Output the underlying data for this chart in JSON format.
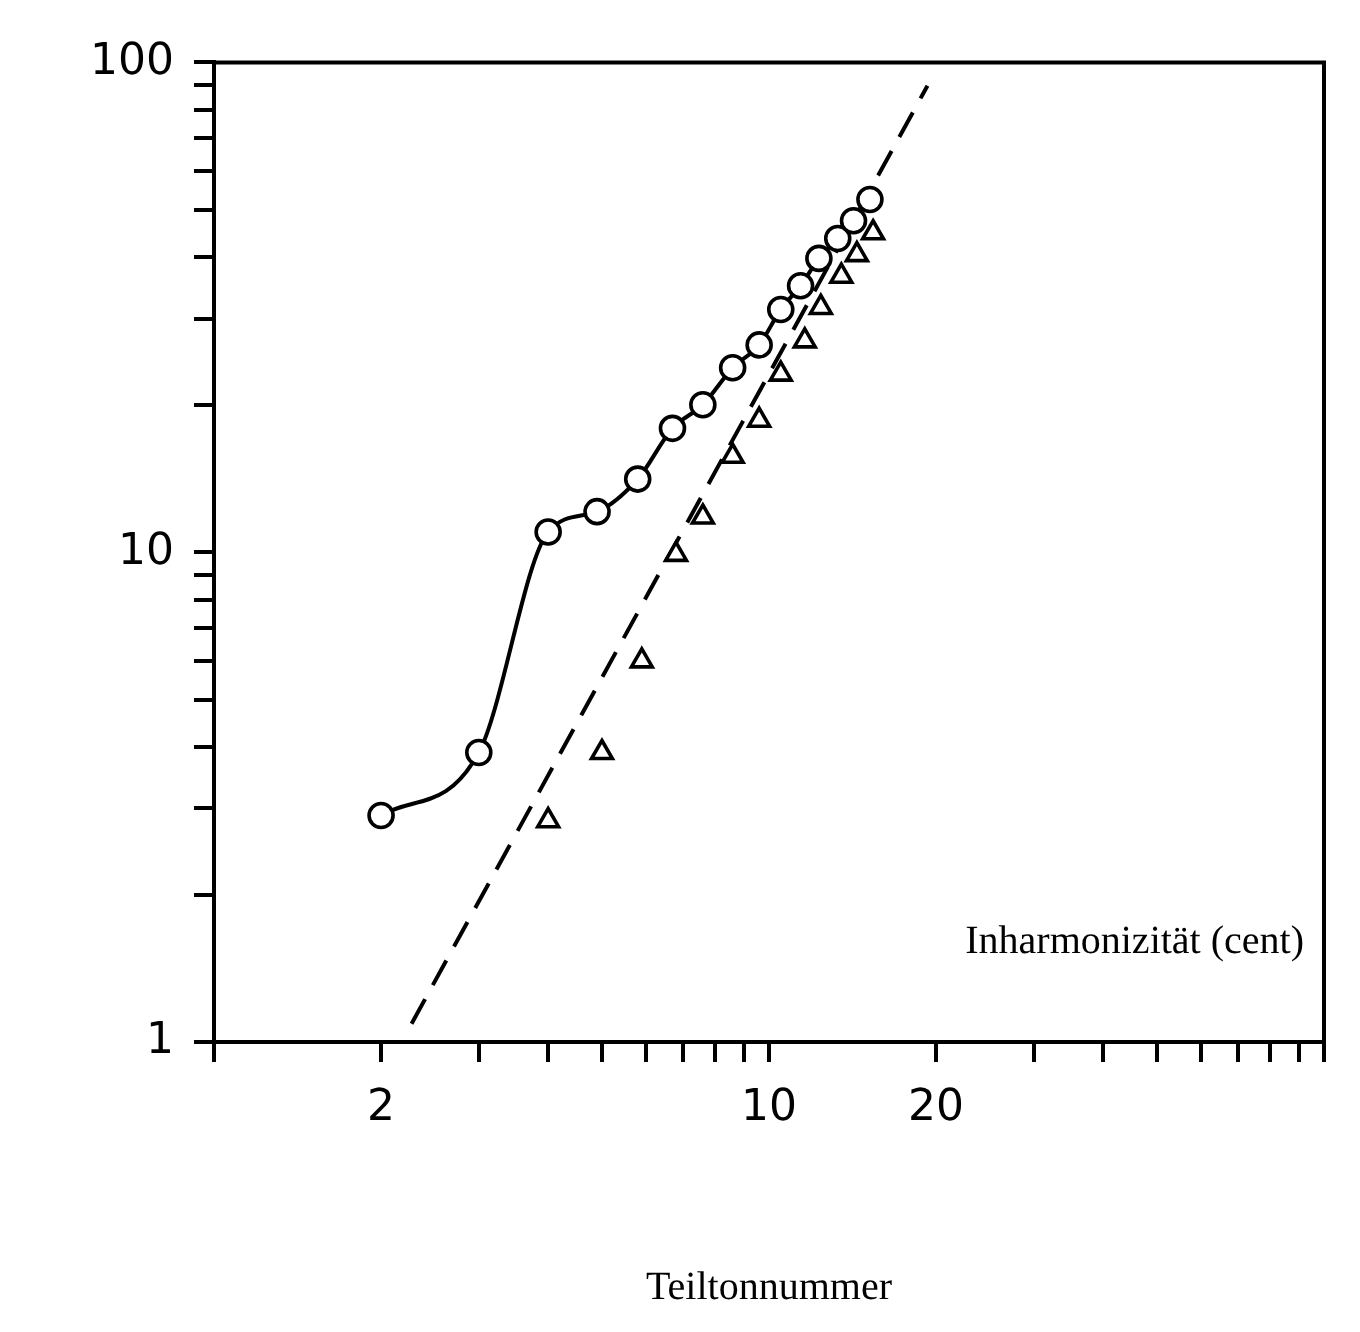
{
  "chart_data": {
    "type": "line",
    "xlabel": "Teiltonnummer",
    "ylabel": "Inharmonizität (cent)",
    "log": "xy",
    "grid": false,
    "legend": false,
    "xlim": [
      1,
      100
    ],
    "ylim": [
      1,
      100
    ],
    "xticks": [
      {
        "value": 1,
        "label": null
      },
      2,
      {
        "value": 3,
        "label": null
      },
      {
        "value": 4,
        "label": null
      },
      {
        "value": 5,
        "label": null
      },
      {
        "value": 6,
        "label": null
      },
      {
        "value": 7,
        "label": null
      },
      {
        "value": 8,
        "label": null
      },
      {
        "value": 9,
        "label": null
      },
      10,
      20,
      {
        "value": 30,
        "label": null
      },
      {
        "value": 40,
        "label": null
      },
      {
        "value": 50,
        "label": null
      },
      {
        "value": 60,
        "label": null
      },
      {
        "value": 70,
        "label": null
      },
      {
        "value": 80,
        "label": null
      },
      {
        "value": 90,
        "label": null
      },
      {
        "value": 100,
        "label": null
      }
    ],
    "yticks": [
      1,
      {
        "value": 2,
        "label": null
      },
      {
        "value": 3,
        "label": null
      },
      {
        "value": 4,
        "label": null
      },
      {
        "value": 5,
        "label": null
      },
      {
        "value": 6,
        "label": null
      },
      {
        "value": 7,
        "label": null
      },
      {
        "value": 8,
        "label": null
      },
      {
        "value": 9,
        "label": null
      },
      10,
      {
        "value": 20,
        "label": null
      },
      {
        "value": 30,
        "label": null
      },
      {
        "value": 40,
        "label": null
      },
      {
        "value": 50,
        "label": null
      },
      {
        "value": 60,
        "label": null
      },
      {
        "value": 70,
        "label": null
      },
      {
        "value": 80,
        "label": null
      },
      {
        "value": 90,
        "label": null
      },
      100
    ],
    "series": [
      {
        "type": "line",
        "marker": "circle",
        "line_style": "solid",
        "color": "#000000",
        "x": [
          2,
          3,
          4,
          4.9,
          5.8,
          6.7,
          7.6,
          8.6,
          9.6,
          10.5,
          11.4,
          12.3,
          13.3,
          14.2,
          15.2
        ],
        "values": [
          2.9,
          3.9,
          11,
          12.1,
          14.1,
          17.9,
          20,
          23.8,
          26.5,
          31.3,
          35,
          39.8,
          43.7,
          47.5,
          52.5
        ]
      },
      {
        "type": "scatter",
        "marker": "triangle",
        "color": "#000000",
        "x": [
          4,
          5,
          5.9,
          6.8,
          7.6,
          8.6,
          9.6,
          10.5,
          11.6,
          12.4,
          13.5,
          14.4,
          15.4
        ],
        "values": [
          2.83,
          3.9,
          6,
          9.9,
          11.8,
          15.7,
          18.6,
          23.1,
          27,
          31.6,
          36.6,
          40.5,
          44.9
        ]
      },
      {
        "type": "line",
        "marker": "none",
        "line_style": "dashed",
        "color": "#000000",
        "x": [
          2.27,
          19.3
        ],
        "values": [
          1.09,
          89.6
        ]
      }
    ]
  }
}
